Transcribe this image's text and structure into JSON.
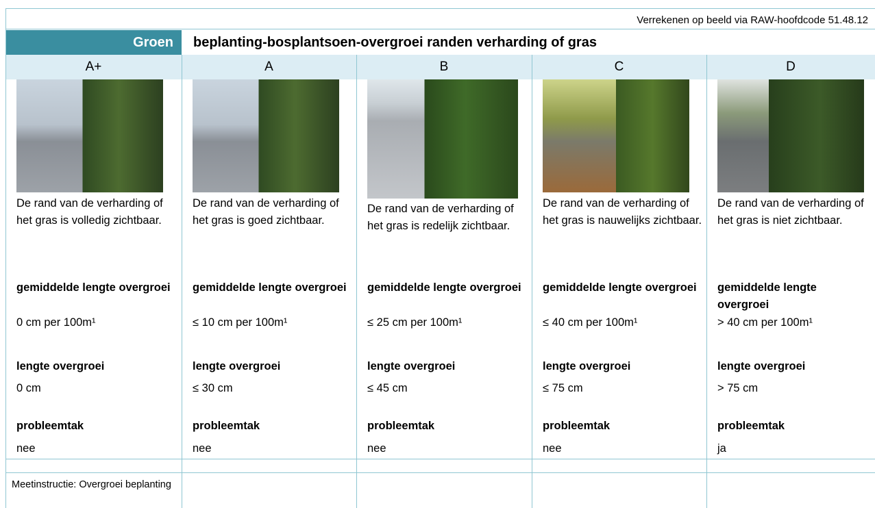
{
  "note": "Verrekenen op beeld via RAW-hoofdcode 51.48.12",
  "header": {
    "category": "Groen",
    "title": "beplanting-bosplantsoen-overgroei randen verharding of gras"
  },
  "columns": [
    {
      "grade": "A+",
      "description": "De rand van de verharding of het gras is volledig zichtbaar.",
      "average_label": "gemiddelde lengte overgroei",
      "average_value": "0 cm per 100m¹",
      "length_label": "lengte overgroei",
      "length_value": "0 cm",
      "branch_label": "probleemtak",
      "branch_value": "nee"
    },
    {
      "grade": "A",
      "description": "De rand van de verharding of het gras is goed zichtbaar.",
      "average_label": "gemiddelde lengte overgroei",
      "average_value": "≤ 10 cm per 100m¹",
      "length_label": "lengte overgroei",
      "length_value": "≤ 30 cm",
      "branch_label": "probleemtak",
      "branch_value": "nee"
    },
    {
      "grade": "B",
      "description": "De rand van de verharding of het gras is redelijk zichtbaar.",
      "average_label": "gemiddelde lengte overgroei",
      "average_value": "≤ 25 cm per 100m¹",
      "length_label": "lengte overgroei",
      "length_value": "≤ 45 cm",
      "branch_label": "probleemtak",
      "branch_value": "nee"
    },
    {
      "grade": "C",
      "description": "De rand van de verharding of het gras is nauwelijks zichtbaar.",
      "average_label": "gemiddelde lengte overgroei",
      "average_value": "≤ 40 cm per 100m¹",
      "length_label": "lengte overgroei",
      "length_value": "≤ 75 cm",
      "branch_label": "probleemtak",
      "branch_value": "nee"
    },
    {
      "grade": "D",
      "description": "De rand van de verharding of het gras is niet zichtbaar.",
      "average_label": "gemiddelde lengte overgroei",
      "average_value": "> 40 cm per 100m¹",
      "length_label": "lengte overgroei",
      "length_value": "> 75 cm",
      "branch_label": "probleemtak",
      "branch_value": "ja"
    }
  ],
  "footer": "Meetinstructie: Overgroei beplanting"
}
